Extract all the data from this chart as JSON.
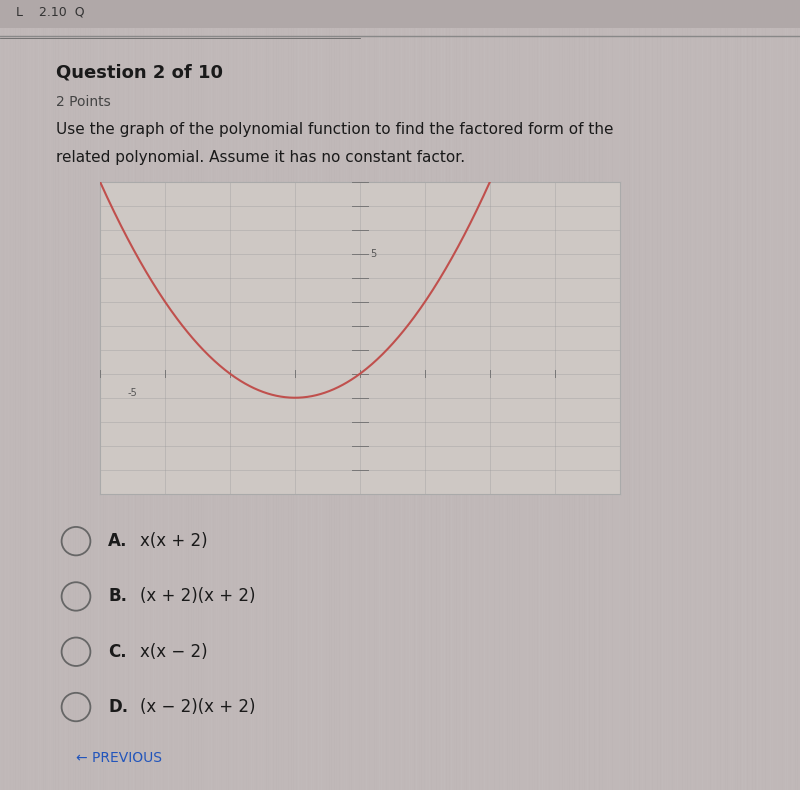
{
  "title": "Question 2 of 10",
  "subtitle": "2 Points",
  "question_line1": "Use the graph of the polynomial function to find the factored form of the",
  "question_line2": "related polynomial. Assume it has no constant factor.",
  "bg_color_top": "#b8b0b0",
  "bg_color_main": "#c0b8b8",
  "bg_color_bottom": "#bcb4b4",
  "graph_bg": "#d8d0cc",
  "graph_bg_right": "#ddd8d0",
  "graph_xlim": [
    -4,
    4
  ],
  "graph_ylim": [
    -5,
    8
  ],
  "curve_color": "#c0504d",
  "choices": [
    {
      "label": "A.",
      "text": "x(x + 2)"
    },
    {
      "label": "B.",
      "text": "(x + 2)(x + 2)"
    },
    {
      "label": "C.",
      "text": "x(x − 2)"
    },
    {
      "label": "D.",
      "text": "(x − 2)(x + 2)"
    }
  ],
  "prev_text": "← PREVIOUS",
  "text_color": "#1a1a1a",
  "axis_color": "#777777",
  "grid_color": "#999999",
  "border_color": "#aaaaaa",
  "circle_color": "#666666",
  "prev_color": "#2255bb"
}
